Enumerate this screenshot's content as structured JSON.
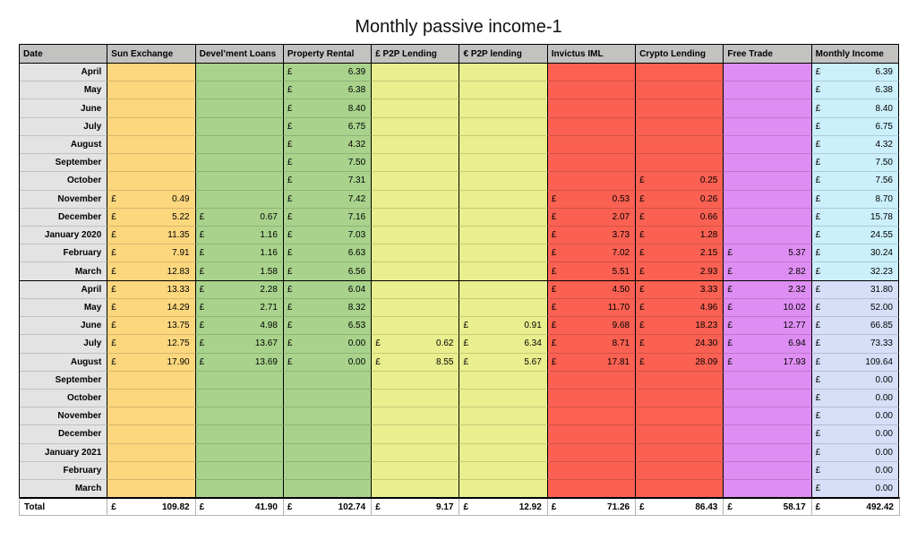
{
  "title": "Monthly passive income-1",
  "chart_data": {
    "type": "table",
    "title": "Monthly passive income-1",
    "columns": [
      "Date",
      "Sun Exchange",
      "Devel’ment Loans",
      "Property Rental",
      "£ P2P Lending",
      "€ P2P lending",
      "Invictus IML",
      "Crypto Lending",
      "Free Trade",
      "Monthly Income"
    ],
    "currency_symbol": "£",
    "rows": [
      {
        "date": "April",
        "values": [
          null,
          null,
          "6.39",
          null,
          null,
          null,
          null,
          null,
          "6.39"
        ]
      },
      {
        "date": "May",
        "values": [
          null,
          null,
          "6.38",
          null,
          null,
          null,
          null,
          null,
          "6.38"
        ]
      },
      {
        "date": "June",
        "values": [
          null,
          null,
          "8.40",
          null,
          null,
          null,
          null,
          null,
          "8.40"
        ]
      },
      {
        "date": "July",
        "values": [
          null,
          null,
          "6.75",
          null,
          null,
          null,
          null,
          null,
          "6.75"
        ]
      },
      {
        "date": "August",
        "values": [
          null,
          null,
          "4.32",
          null,
          null,
          null,
          null,
          null,
          "4.32"
        ]
      },
      {
        "date": "September",
        "values": [
          null,
          null,
          "7.50",
          null,
          null,
          null,
          null,
          null,
          "7.50"
        ]
      },
      {
        "date": "October",
        "values": [
          null,
          null,
          "7.31",
          null,
          null,
          null,
          "0.25",
          null,
          "7.56"
        ]
      },
      {
        "date": "November",
        "values": [
          "0.49",
          null,
          "7.42",
          null,
          null,
          "0.53",
          "0.26",
          null,
          "8.70"
        ]
      },
      {
        "date": "December",
        "values": [
          "5.22",
          "0.67",
          "7.16",
          null,
          null,
          "2.07",
          "0.66",
          null,
          "15.78"
        ]
      },
      {
        "date": "January 2020",
        "values": [
          "11.35",
          "1.16",
          "7.03",
          null,
          null,
          "3.73",
          "1.28",
          null,
          "24.55"
        ]
      },
      {
        "date": "February",
        "values": [
          "7.91",
          "1.16",
          "6.63",
          null,
          null,
          "7.02",
          "2.15",
          "5.37",
          "30.24"
        ]
      },
      {
        "date": "March",
        "values": [
          "12.83",
          "1.58",
          "6.56",
          null,
          null,
          "5.51",
          "2.93",
          "2.82",
          "32.23"
        ]
      },
      {
        "date": "April",
        "values": [
          "13.33",
          "2.28",
          "6.04",
          null,
          null,
          "4.50",
          "3.33",
          "2.32",
          "31.80"
        ]
      },
      {
        "date": "May",
        "values": [
          "14.29",
          "2.71",
          "8.32",
          null,
          null,
          "11.70",
          "4.96",
          "10.02",
          "52.00"
        ]
      },
      {
        "date": "June",
        "values": [
          "13.75",
          "4.98",
          "6.53",
          null,
          "0.91",
          "9.68",
          "18.23",
          "12.77",
          "66.85"
        ]
      },
      {
        "date": "July",
        "values": [
          "12.75",
          "13.67",
          "0.00",
          "0.62",
          "6.34",
          "8.71",
          "24.30",
          "6.94",
          "73.33"
        ]
      },
      {
        "date": "August",
        "values": [
          "17.90",
          "13.69",
          "0.00",
          "8.55",
          "5.67",
          "17.81",
          "28.09",
          "17.93",
          "109.64"
        ]
      },
      {
        "date": "September",
        "values": [
          null,
          null,
          null,
          null,
          null,
          null,
          null,
          null,
          "0.00"
        ]
      },
      {
        "date": "October",
        "values": [
          null,
          null,
          null,
          null,
          null,
          null,
          null,
          null,
          "0.00"
        ]
      },
      {
        "date": "November",
        "values": [
          null,
          null,
          null,
          null,
          null,
          null,
          null,
          null,
          "0.00"
        ]
      },
      {
        "date": "December",
        "values": [
          null,
          null,
          null,
          null,
          null,
          null,
          null,
          null,
          "0.00"
        ]
      },
      {
        "date": "January 2021",
        "values": [
          null,
          null,
          null,
          null,
          null,
          null,
          null,
          null,
          "0.00"
        ]
      },
      {
        "date": "February",
        "values": [
          null,
          null,
          null,
          null,
          null,
          null,
          null,
          null,
          "0.00"
        ]
      },
      {
        "date": "March",
        "values": [
          null,
          null,
          null,
          null,
          null,
          null,
          null,
          null,
          "0.00"
        ]
      }
    ],
    "total_row": {
      "label": "Total",
      "values": [
        "109.82",
        "41.90",
        "102.74",
        "9.17",
        "12.92",
        "71.26",
        "86.43",
        "58.17",
        "492.42"
      ]
    },
    "year_group_starts": [
      0,
      12
    ]
  },
  "style": {
    "header_fill": "#c2c3c1",
    "date_fill": "#e3e3e3",
    "column_fills": [
      "#fcd77e",
      "#a9d38c",
      "#a9d38c",
      "#e9ee8e",
      "#e9ee8e",
      "#fa6152",
      "#fa6152",
      "#de8ef2",
      "#cbeffb"
    ],
    "income_fill_year2": "#d6def8",
    "total_fill": "#ffffff"
  }
}
